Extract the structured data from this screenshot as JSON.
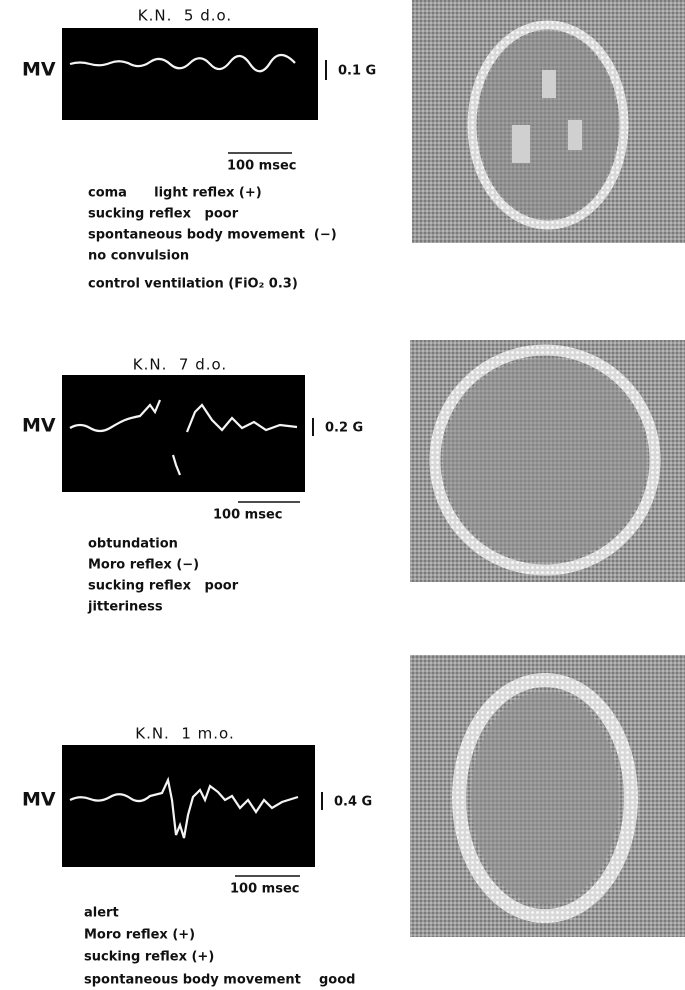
{
  "panels": [
    {
      "title": "K.N.  5 d.o.",
      "channel": "MV",
      "calibration": "0.1 G",
      "time_scale": "100 msec",
      "notes": [
        "coma      light reflex (+)",
        "sucking reflex   poor",
        "spontaneous body movement  (−)",
        "no convulsion",
        "control ventilation (FiO₂ 0.3)"
      ]
    },
    {
      "title": "K.N.  7 d.o.",
      "channel": "MV",
      "calibration": "0.2 G",
      "time_scale": "100 msec",
      "notes": [
        "obtundation",
        "Moro reflex (−)",
        "sucking reflex   poor",
        "jitteriness"
      ]
    },
    {
      "title": "K.N.  1 m.o.",
      "channel": "MV",
      "calibration": "0.4 G",
      "time_scale": "100 msec",
      "notes": [
        "alert",
        "Moro reflex (+)",
        "sucking reflex (+)",
        "spontaneous body movement    good"
      ]
    }
  ]
}
